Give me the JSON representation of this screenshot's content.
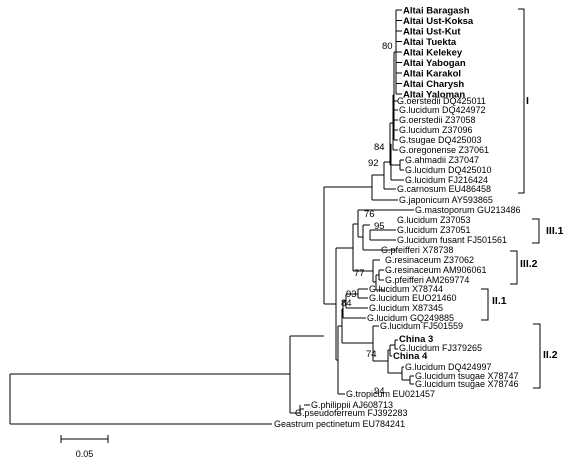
{
  "taxa": [
    {
      "label": "Altai Baragash",
      "bold": true
    },
    {
      "label": "Altai Ust-Koksa",
      "bold": true
    },
    {
      "label": "Altai Ust-Kut",
      "bold": true
    },
    {
      "label": "Altai Tuekta",
      "bold": true
    },
    {
      "label": "Altai Kelekey",
      "bold": true
    },
    {
      "label": "Altai Yabogan",
      "bold": true
    },
    {
      "label": "Altai Karakol",
      "bold": true
    },
    {
      "label": "Altai Charysh",
      "bold": true
    },
    {
      "label": "Altai Yaloman",
      "bold": true
    },
    {
      "label": "G.oerstedii DQ425011",
      "bold": false
    },
    {
      "label": "G.lucidum DQ424972",
      "bold": false
    },
    {
      "label": "G.oerstedii Z37058",
      "bold": false
    },
    {
      "label": "G.lucidum Z37096",
      "bold": false
    },
    {
      "label": "G.tsugae DQ425003",
      "bold": false
    },
    {
      "label": "G.oregonense Z37061",
      "bold": false
    },
    {
      "label": "G.ahmadii Z37047",
      "bold": false
    },
    {
      "label": "G.lucidum DQ425010",
      "bold": false
    },
    {
      "label": "G.lucidum FJ216424",
      "bold": false
    },
    {
      "label": "G.carnosum EU486458",
      "bold": false
    },
    {
      "label": "G.japonicum AY593865",
      "bold": false
    },
    {
      "label": "G.mastoporum GU213486",
      "bold": false
    },
    {
      "label": "G.lucidum Z37053",
      "bold": false
    },
    {
      "label": "G.lucidum Z37051",
      "bold": false
    },
    {
      "label": "G.lucidum fusant FJ501561",
      "bold": false
    },
    {
      "label": "G.pfeifferi X78738",
      "bold": false
    },
    {
      "label": "G.resinaceum Z37062",
      "bold": false
    },
    {
      "label": "G.resinaceum AM906061",
      "bold": false
    },
    {
      "label": "G.pfeifferi AM269774",
      "bold": false
    },
    {
      "label": "G.lucidum X78744",
      "bold": false
    },
    {
      "label": "G.lucidum EUO21460",
      "bold": false
    },
    {
      "label": "G.lucidum X87345",
      "bold": false
    },
    {
      "label": "G.lucidum GQ249885",
      "bold": false
    },
    {
      "label": "G.lucidum FJ501559",
      "bold": false
    },
    {
      "label": "China 3",
      "bold": true
    },
    {
      "label": "G.lucidum FJ379265",
      "bold": false
    },
    {
      "label": "China 4",
      "bold": true
    },
    {
      "label": "G.lucidum DQ424997",
      "bold": false
    },
    {
      "label": "G.lucidum tsugae X78747",
      "bold": false
    },
    {
      "label": "G.lucidum tsugae X78746",
      "bold": false
    },
    {
      "label": "G.tropicum EU021457",
      "bold": false
    },
    {
      "label": "G.philippii AJ608713",
      "bold": false
    },
    {
      "label": "G.pseudoferreum FJ392283",
      "bold": false
    },
    {
      "label": "Geastrum pectinetum EU784241",
      "bold": false
    }
  ],
  "bootstrap": [
    "80",
    "84",
    "92",
    "76",
    "95",
    "77",
    "93",
    "84",
    "74",
    "94"
  ],
  "clades": [
    "I",
    "III.1",
    "III.2",
    "II.1",
    "II.2"
  ],
  "scale_bar": {
    "value": "0.05"
  }
}
